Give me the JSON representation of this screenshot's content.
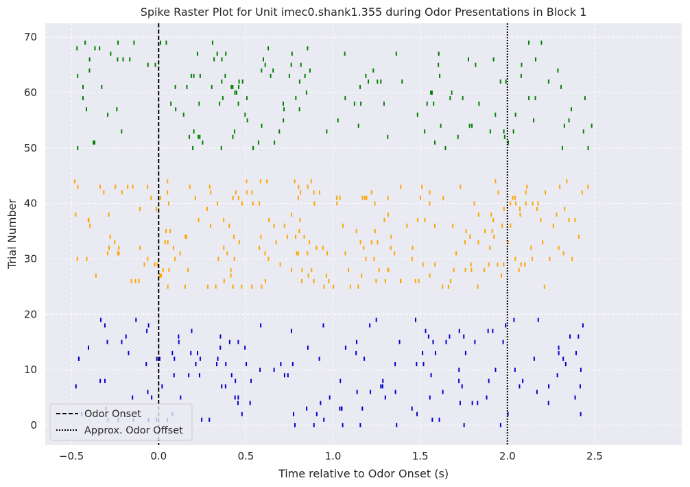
{
  "chart_data": {
    "type": "scatter",
    "title": "Spike Raster Plot for Unit imec0.shank1.355 during Odor Presentations in Block 1",
    "xlabel": "Time relative to Odor Onset (s)",
    "ylabel": "Trial Number",
    "xlim": [
      -0.65,
      3.0
    ],
    "ylim": [
      -3.6,
      72.5
    ],
    "xticks": [
      -0.5,
      0.0,
      0.5,
      1.0,
      1.5,
      2.0,
      2.5
    ],
    "xtick_labels": [
      "−0.5",
      "0.0",
      "0.5",
      "1.0",
      "1.5",
      "2.0",
      "2.5"
    ],
    "yticks": [
      0,
      10,
      20,
      30,
      40,
      50,
      60,
      70
    ],
    "ytick_labels": [
      "0",
      "10",
      "20",
      "30",
      "40",
      "50",
      "60",
      "70"
    ],
    "grid": true,
    "background": "#eaeaf2",
    "legend_position": "lower-left",
    "marker": "vertical tick",
    "time_window": [
      -0.5,
      2.5
    ],
    "series": [
      {
        "color": "#0000cc",
        "trials": [
          0,
          19
        ],
        "avg_spikes_per_trial": 8
      },
      {
        "color": "#ffa500",
        "trials": [
          25,
          44
        ],
        "avg_spikes_per_trial": 12
      },
      {
        "color": "#008000",
        "trials": [
          50,
          69
        ],
        "avg_spikes_per_trial": 8
      }
    ],
    "reference_lines": [
      {
        "x": 0.0,
        "label": "Odor Onset",
        "style": "dashed",
        "color": "#000000"
      },
      {
        "x": 2.0,
        "label": "Approx. Odor Offset",
        "style": "dotted",
        "color": "#000000"
      }
    ]
  }
}
